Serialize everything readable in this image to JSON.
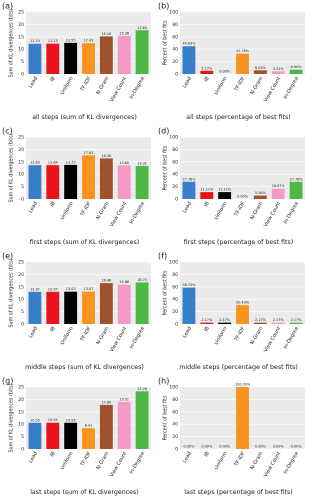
{
  "chart_data": [
    {
      "type": "bar",
      "panel": "(a)",
      "title": "all steps (sum of KL divergences)",
      "ylabel": "Sum of KL divergences (bits)",
      "categories": [
        "Lead",
        "IB",
        "Uniform",
        "TF-IDF",
        "N-Gram",
        "View Count",
        "In-Degree"
      ],
      "values": [
        12.2,
        12.23,
        12.55,
        12.43,
        15.16,
        15.36,
        17.63
      ],
      "value_labels": [
        "12.20",
        "12.23",
        "12.55",
        "12.43",
        "15.16",
        "15.36",
        "17.63"
      ],
      "colors": [
        "#3a7dc9",
        "#e8141c",
        "#000000",
        "#f7941d",
        "#a0522d",
        "#f49ac6",
        "#4cb847"
      ],
      "ylim": [
        0,
        25
      ],
      "yticks": [
        0,
        5,
        10,
        15,
        20,
        25
      ]
    },
    {
      "type": "bar",
      "panel": "(b)",
      "title": "all steps (percentage of best fits)",
      "ylabel": "Percent of best fits",
      "categories": [
        "Lead",
        "IB",
        "Uniform",
        "TF-IDF",
        "N-Gram",
        "View Count",
        "In-Degree"
      ],
      "values": [
        44.83,
        5.17,
        0,
        32.76,
        6.03,
        4.31,
        6.9
      ],
      "value_labels": [
        "44.83%",
        "5.17%",
        "0.00%",
        "32.76%",
        "6.03%",
        "4.31%",
        "6.90%"
      ],
      "colors": [
        "#3a7dc9",
        "#e8141c",
        "#000000",
        "#f7941d",
        "#a0522d",
        "#f49ac6",
        "#4cb847"
      ],
      "ylim": [
        0,
        100
      ],
      "yticks": [
        0,
        20,
        40,
        60,
        80,
        100
      ]
    },
    {
      "type": "bar",
      "panel": "(c)",
      "title": "first steps (sum of KL divergences)",
      "ylabel": "Sum of KL divergences (bits)",
      "categories": [
        "Lead",
        "IB",
        "Uniform",
        "TF-IDF",
        "N-Gram",
        "View Count",
        "In-Degree"
      ],
      "values": [
        13.63,
        13.64,
        13.75,
        17.63,
        16.38,
        13.6,
        13.31
      ],
      "value_labels": [
        "13.63",
        "13.64",
        "13.75",
        "17.63",
        "16.38",
        "13.60",
        "13.31"
      ],
      "colors": [
        "#3a7dc9",
        "#e8141c",
        "#000000",
        "#f7941d",
        "#a0522d",
        "#f49ac6",
        "#4cb847"
      ],
      "ylim": [
        0,
        25
      ],
      "yticks": [
        0,
        5,
        10,
        15,
        20,
        25
      ]
    },
    {
      "type": "bar",
      "panel": "(d)",
      "title": "first steps (percentage of best fits)",
      "ylabel": "Percent of best fits",
      "categories": [
        "Lead",
        "IB",
        "Uniform",
        "TF-IDF",
        "N-Gram",
        "View Count",
        "In-Degree"
      ],
      "values": [
        27.78,
        11.11,
        11.11,
        0,
        5.56,
        16.67,
        27.78
      ],
      "value_labels": [
        "27.78%",
        "11.11%",
        "11.11%",
        "0.00%",
        "5.56%",
        "16.67%",
        "27.78%"
      ],
      "colors": [
        "#3a7dc9",
        "#e8141c",
        "#000000",
        "#f7941d",
        "#a0522d",
        "#f49ac6",
        "#4cb847"
      ],
      "ylim": [
        0,
        100
      ],
      "yticks": [
        0,
        20,
        40,
        60,
        80,
        100
      ]
    },
    {
      "type": "bar",
      "panel": "(e)",
      "title": "middle steps (sum of KL divergences)",
      "ylabel": "Sum of KL divergences (bits)",
      "categories": [
        "Lead",
        "IB",
        "Uniform",
        "TF-IDF",
        "N-Gram",
        "View Count",
        "In-Degree"
      ],
      "values": [
        12.97,
        12.97,
        13.03,
        13.07,
        16.48,
        15.86,
        16.75
      ],
      "value_labels": [
        "12.97",
        "12.97",
        "13.03",
        "13.07",
        "16.48",
        "15.86",
        "16.75"
      ],
      "colors": [
        "#3a7dc9",
        "#e8141c",
        "#000000",
        "#f7941d",
        "#a0522d",
        "#f49ac6",
        "#4cb847"
      ],
      "ylim": [
        0,
        25
      ],
      "yticks": [
        0,
        5,
        10,
        15,
        20,
        25
      ]
    },
    {
      "type": "bar",
      "panel": "(f)",
      "title": "middle steps (percentage of best fits)",
      "ylabel": "Percent of best fits",
      "categories": [
        "Lead",
        "IB",
        "Uniform",
        "TF-IDF",
        "N-Gram",
        "View Count",
        "In-Degree"
      ],
      "values": [
        58.7,
        2.17,
        2.17,
        30.43,
        2.17,
        2.17,
        2.17
      ],
      "value_labels": [
        "58.70%",
        "2.17%",
        "2.17%",
        "30.43%",
        "2.17%",
        "2.17%",
        "2.17%"
      ],
      "colors": [
        "#3a7dc9",
        "#e8141c",
        "#000000",
        "#f7941d",
        "#a0522d",
        "#f49ac6",
        "#4cb847"
      ],
      "ylim": [
        0,
        100
      ],
      "yticks": [
        0,
        20,
        40,
        60,
        80,
        100
      ]
    },
    {
      "type": "bar",
      "panel": "(g)",
      "title": "last steps (sum of KL divergences)",
      "ylabel": "Sum of KL divergences (bits)",
      "categories": [
        "Lead",
        "IB",
        "Uniform",
        "TF-IDF",
        "N-Gram",
        "View Count",
        "In-Degree"
      ],
      "values": [
        10.55,
        10.59,
        10.56,
        8.41,
        17.8,
        19.01,
        23.28
      ],
      "value_labels": [
        "10.55",
        "10.59",
        "10.56",
        "8.41",
        "17.80",
        "19.01",
        "23.28"
      ],
      "colors": [
        "#3a7dc9",
        "#e8141c",
        "#000000",
        "#f7941d",
        "#a0522d",
        "#f49ac6",
        "#4cb847"
      ],
      "ylim": [
        0,
        25
      ],
      "yticks": [
        0,
        5,
        10,
        15,
        20,
        25
      ]
    },
    {
      "type": "bar",
      "panel": "(h)",
      "title": "last steps (percentage of best fits)",
      "ylabel": "Percent of best fits",
      "categories": [
        "Lead",
        "IB",
        "Uniform",
        "TF-IDF",
        "N-Gram",
        "View Count",
        "In-Degree"
      ],
      "values": [
        0,
        0,
        0,
        100,
        0,
        0,
        0
      ],
      "value_labels": [
        "0.00%",
        "0.00%",
        "0.00%",
        "100.00%",
        "0.00%",
        "0.00%",
        "0.00%"
      ],
      "colors": [
        "#3a7dc9",
        "#e8141c",
        "#000000",
        "#f7941d",
        "#a0522d",
        "#f49ac6",
        "#4cb847"
      ],
      "ylim": [
        0,
        100
      ],
      "yticks": [
        0,
        20,
        40,
        60,
        80,
        100
      ]
    }
  ]
}
